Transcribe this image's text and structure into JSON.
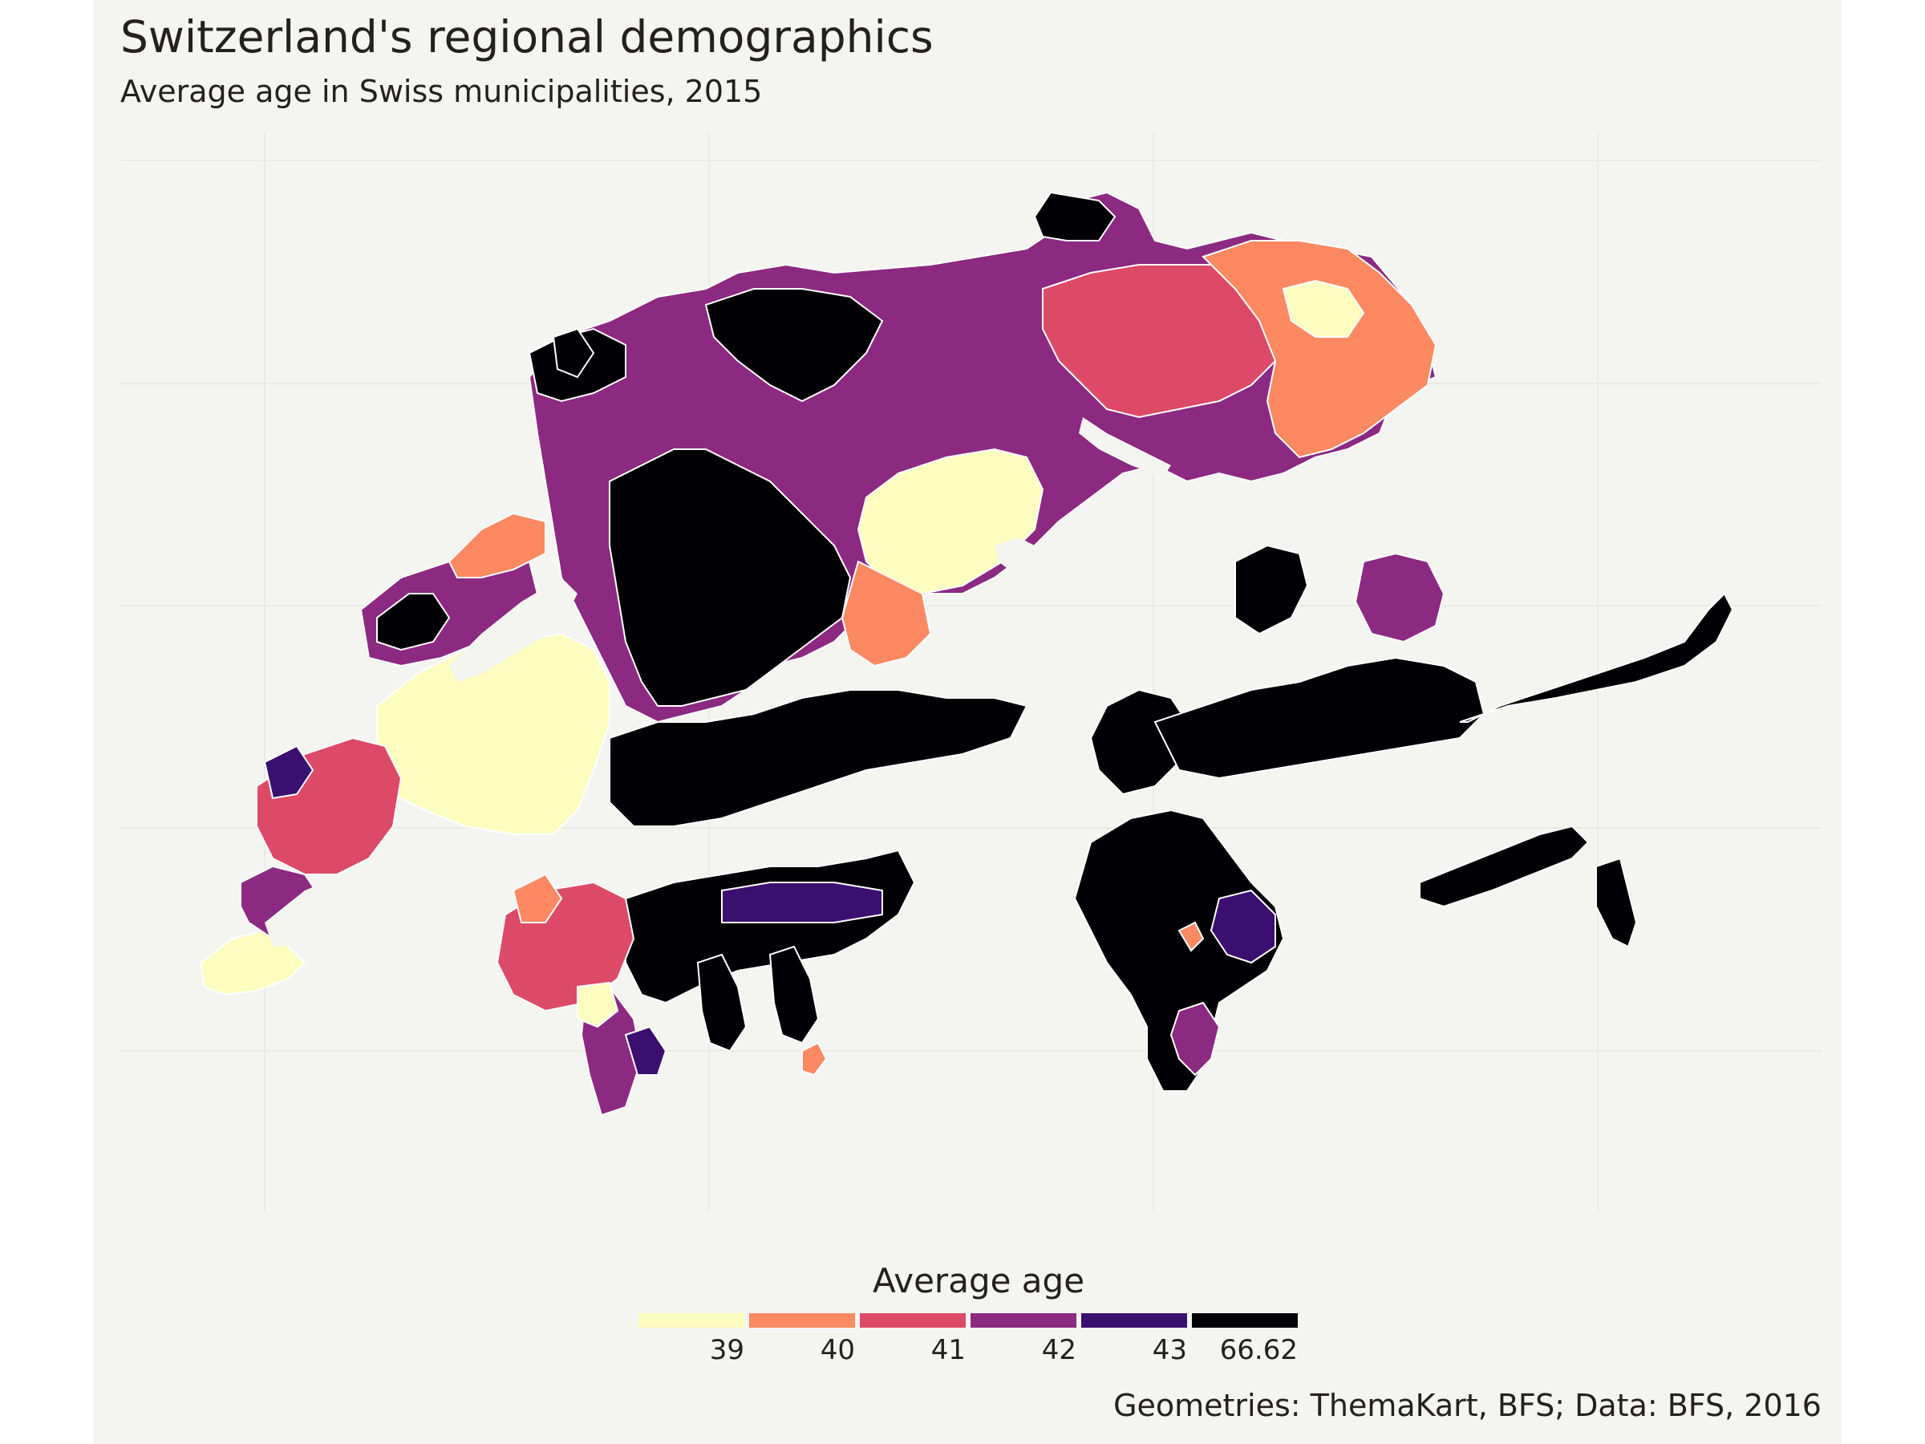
{
  "title": "Switzerland's regional demographics",
  "subtitle": "Average age in Swiss municipalities, 2015",
  "caption": "Geometries: ThemaKart, BFS; Data: BFS, 2016",
  "legend": {
    "title": "Average age",
    "classes": [
      {
        "color": "#fcfdbf",
        "upper_label": "39"
      },
      {
        "color": "#fc8961",
        "upper_label": "40"
      },
      {
        "color": "#dd4a68",
        "upper_label": "41"
      },
      {
        "color": "#8c2981",
        "upper_label": "42"
      },
      {
        "color": "#3b0f70",
        "upper_label": "43"
      },
      {
        "color": "#000004",
        "upper_label": "66.62"
      }
    ]
  },
  "colors": {
    "background": "#f4f4f1",
    "text": "#22211d",
    "grid": "#ebebe5",
    "borders": "#ffffff"
  },
  "map": {
    "subject": "Swiss municipalities choropleth",
    "grid": "on",
    "axes_labels": "none"
  }
}
